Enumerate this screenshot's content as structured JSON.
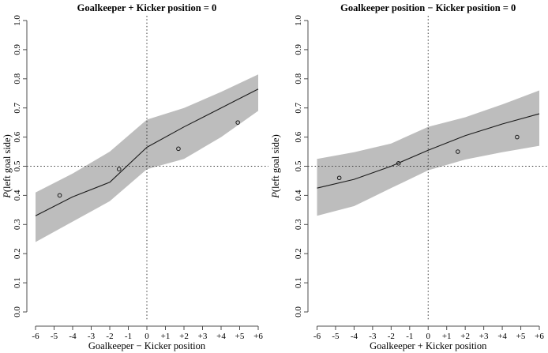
{
  "figure": {
    "background": "#ffffff",
    "description_left_panel": "Goalkeeper + Kicker position = 0",
    "description_right_panel": "Goalkeeper position − Kicker position = 0"
  },
  "chart_data": [
    {
      "type": "line",
      "title": "Goalkeeper + Kicker position = 0",
      "xlabel": "Goalkeeper − Kicker position",
      "ylabel_italic": "P",
      "ylabel_rest": "(left goal side)",
      "xlim": [
        -6,
        6
      ],
      "ylim": [
        0,
        1
      ],
      "grid": false,
      "legend": "none",
      "x_ticks": {
        "values": [
          -6,
          -5,
          -4,
          -3,
          -2,
          -1,
          0,
          1,
          2,
          3,
          4,
          5,
          6
        ],
        "labels": [
          "-6",
          "-5",
          "-4",
          "-3",
          "-2",
          "-1",
          "0",
          "+1",
          "+2",
          "+3",
          "+4",
          "+5",
          "+6"
        ]
      },
      "y_ticks": {
        "values": [
          0,
          0.1,
          0.2,
          0.3,
          0.4,
          0.5,
          0.6,
          0.7,
          0.8,
          0.9,
          1.0
        ],
        "labels": [
          "0.0",
          "0.1",
          "0.2",
          "0.3",
          "0.4",
          "0.5",
          "0.6",
          "0.7",
          "0.8",
          "0.9",
          "1.0"
        ]
      },
      "reference_lines": {
        "horizontal_y": 0.5,
        "vertical_x": 0,
        "style": "dotted"
      },
      "band": {
        "x": [
          -6,
          -4,
          -2,
          0,
          2,
          4,
          6
        ],
        "lower": [
          0.24,
          0.31,
          0.38,
          0.49,
          0.525,
          0.6,
          0.69
        ],
        "upper": [
          0.41,
          0.475,
          0.55,
          0.66,
          0.7,
          0.755,
          0.815
        ]
      },
      "line": {
        "x": [
          -6,
          -4,
          -2,
          0,
          2,
          4,
          6
        ],
        "y": [
          0.33,
          0.395,
          0.445,
          0.565,
          0.635,
          0.7,
          0.765
        ]
      },
      "points": {
        "x": [
          -4.7,
          -1.5,
          1.7,
          4.9
        ],
        "y": [
          0.4,
          0.49,
          0.56,
          0.65
        ]
      },
      "colors": {
        "band": "#bdbdbd",
        "line": "#1a1a1a",
        "point": "#1a1a1a",
        "text": "#000000"
      }
    },
    {
      "type": "line",
      "title": "Goalkeeper position − Kicker position = 0",
      "xlabel": "Goalkeeper + Kicker position",
      "ylabel_italic": "P",
      "ylabel_rest": "(left goal side)",
      "xlim": [
        -6,
        6
      ],
      "ylim": [
        0,
        1
      ],
      "grid": false,
      "legend": "none",
      "x_ticks": {
        "values": [
          -6,
          -5,
          -4,
          -3,
          -2,
          -1,
          0,
          1,
          2,
          3,
          4,
          5,
          6
        ],
        "labels": [
          "-6",
          "-5",
          "-4",
          "-3",
          "-2",
          "-1",
          "0",
          "+1",
          "+2",
          "+3",
          "+4",
          "+5",
          "+6"
        ]
      },
      "y_ticks": {
        "values": [
          0,
          0.1,
          0.2,
          0.3,
          0.4,
          0.5,
          0.6,
          0.7,
          0.8,
          0.9,
          1.0
        ],
        "labels": [
          "0.0",
          "0.1",
          "0.2",
          "0.3",
          "0.4",
          "0.5",
          "0.6",
          "0.7",
          "0.8",
          "0.9",
          "1.0"
        ]
      },
      "reference_lines": {
        "horizontal_y": 0.5,
        "vertical_x": 0,
        "style": "dotted"
      },
      "band": {
        "x": [
          -6,
          -4,
          -2,
          0,
          2,
          4,
          6
        ],
        "lower": [
          0.33,
          0.363,
          0.425,
          0.486,
          0.523,
          0.548,
          0.57
        ],
        "upper": [
          0.525,
          0.548,
          0.578,
          0.635,
          0.668,
          0.712,
          0.76
        ]
      },
      "line": {
        "x": [
          -6,
          -4,
          -2,
          0,
          2,
          4,
          6
        ],
        "y": [
          0.425,
          0.455,
          0.5,
          0.555,
          0.605,
          0.645,
          0.68
        ]
      },
      "points": {
        "x": [
          -4.8,
          -1.6,
          1.6,
          4.8
        ],
        "y": [
          0.46,
          0.51,
          0.55,
          0.6
        ]
      },
      "colors": {
        "band": "#bdbdbd",
        "line": "#1a1a1a",
        "point": "#1a1a1a",
        "text": "#000000"
      }
    }
  ]
}
